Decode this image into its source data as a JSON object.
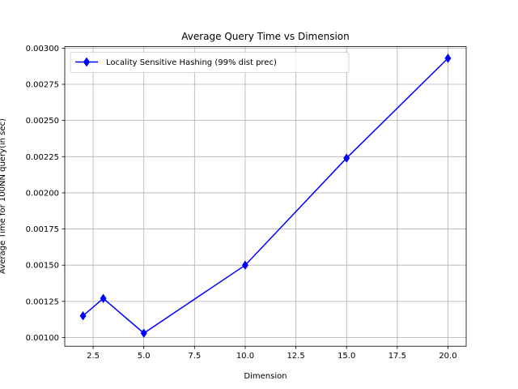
{
  "chart_data": {
    "type": "line",
    "title": "Average Query Time vs Dimension",
    "xlabel": "Dimension",
    "ylabel": "Average Time for 100NN query(in sec)",
    "xlim": [
      1.1,
      20.9
    ],
    "ylim": [
      0.00094,
      0.00301
    ],
    "x_ticks": [
      2.5,
      5.0,
      7.5,
      10.0,
      12.5,
      15.0,
      17.5,
      20.0
    ],
    "x_tick_labels": [
      "2.5",
      "5.0",
      "7.5",
      "10.0",
      "12.5",
      "15.0",
      "17.5",
      "20.0"
    ],
    "y_ticks": [
      0.001,
      0.00125,
      0.0015,
      0.00175,
      0.002,
      0.00225,
      0.0025,
      0.00275,
      0.003
    ],
    "y_tick_labels": [
      "0.00100",
      "0.00125",
      "0.00150",
      "0.00175",
      "0.00200",
      "0.00225",
      "0.00250",
      "0.00275",
      "0.00300"
    ],
    "grid": true,
    "legend_position": "top-left",
    "series": [
      {
        "name": "Locality Sensitive Hashing (99% dist prec)",
        "color": "#0000ff",
        "marker": "thin-diamond",
        "x": [
          2,
          3,
          5,
          10,
          15,
          20
        ],
        "y": [
          0.00115,
          0.00127,
          0.00103,
          0.0015,
          0.00224,
          0.00293
        ]
      }
    ]
  }
}
